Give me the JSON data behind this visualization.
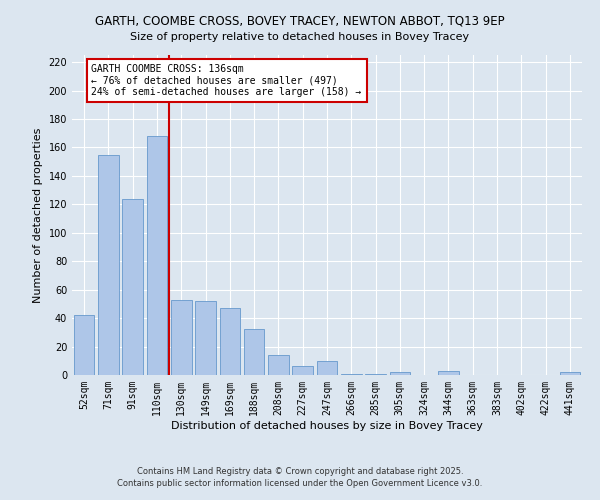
{
  "title": "GARTH, COOMBE CROSS, BOVEY TRACEY, NEWTON ABBOT, TQ13 9EP",
  "subtitle": "Size of property relative to detached houses in Bovey Tracey",
  "xlabel": "Distribution of detached houses by size in Bovey Tracey",
  "ylabel": "Number of detached properties",
  "categories": [
    "52sqm",
    "71sqm",
    "91sqm",
    "110sqm",
    "130sqm",
    "149sqm",
    "169sqm",
    "188sqm",
    "208sqm",
    "227sqm",
    "247sqm",
    "266sqm",
    "285sqm",
    "305sqm",
    "324sqm",
    "344sqm",
    "363sqm",
    "383sqm",
    "402sqm",
    "422sqm",
    "441sqm"
  ],
  "values": [
    42,
    155,
    124,
    168,
    53,
    52,
    47,
    32,
    14,
    6,
    10,
    1,
    1,
    2,
    0,
    3,
    0,
    0,
    0,
    0,
    2
  ],
  "bar_color": "#aec6e8",
  "bar_edge_color": "#6699cc",
  "marker_color": "#cc0000",
  "ylim": [
    0,
    225
  ],
  "yticks": [
    0,
    20,
    40,
    60,
    80,
    100,
    120,
    140,
    160,
    180,
    200,
    220
  ],
  "bg_color": "#dce6f0",
  "plot_bg_color": "#dce6f0",
  "footnote1": "Contains HM Land Registry data © Crown copyright and database right 2025.",
  "footnote2": "Contains public sector information licensed under the Open Government Licence v3.0.",
  "marker_label_line1": "GARTH COOMBE CROSS: 136sqm",
  "marker_label_line2": "← 76% of detached houses are smaller (497)",
  "marker_label_line3": "24% of semi-detached houses are larger (158) →",
  "title_fontsize": 8.5,
  "subtitle_fontsize": 8,
  "axis_label_fontsize": 8,
  "tick_fontsize": 7,
  "annot_fontsize": 7,
  "footnote_fontsize": 6
}
